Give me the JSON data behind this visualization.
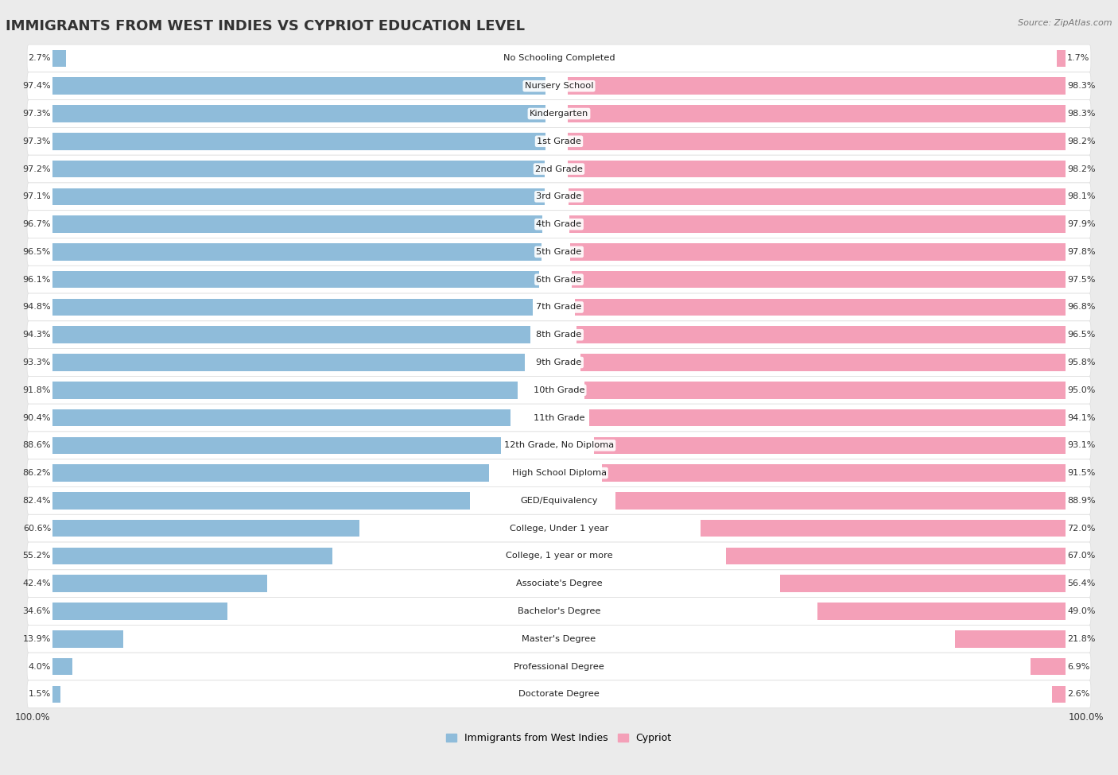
{
  "title": "IMMIGRANTS FROM WEST INDIES VS CYPRIOT EDUCATION LEVEL",
  "source": "Source: ZipAtlas.com",
  "categories": [
    "No Schooling Completed",
    "Nursery School",
    "Kindergarten",
    "1st Grade",
    "2nd Grade",
    "3rd Grade",
    "4th Grade",
    "5th Grade",
    "6th Grade",
    "7th Grade",
    "8th Grade",
    "9th Grade",
    "10th Grade",
    "11th Grade",
    "12th Grade, No Diploma",
    "High School Diploma",
    "GED/Equivalency",
    "College, Under 1 year",
    "College, 1 year or more",
    "Associate's Degree",
    "Bachelor's Degree",
    "Master's Degree",
    "Professional Degree",
    "Doctorate Degree"
  ],
  "west_indies": [
    2.7,
    97.4,
    97.3,
    97.3,
    97.2,
    97.1,
    96.7,
    96.5,
    96.1,
    94.8,
    94.3,
    93.3,
    91.8,
    90.4,
    88.6,
    86.2,
    82.4,
    60.6,
    55.2,
    42.4,
    34.6,
    13.9,
    4.0,
    1.5
  ],
  "cypriot": [
    1.7,
    98.3,
    98.3,
    98.2,
    98.2,
    98.1,
    97.9,
    97.8,
    97.5,
    96.8,
    96.5,
    95.8,
    95.0,
    94.1,
    93.1,
    91.5,
    88.9,
    72.0,
    67.0,
    56.4,
    49.0,
    21.8,
    6.9,
    2.6
  ],
  "west_indies_color": "#8fbcda",
  "cypriot_color": "#f4a0b8",
  "bg_color": "#ebebeb",
  "row_bg_color": "#f7f7f7",
  "row_alt_color": "#f0f0f0",
  "title_fontsize": 13,
  "label_fontsize": 8.2,
  "value_fontsize": 8.0,
  "bar_height": 0.62,
  "legend_label_wi": "Immigrants from West Indies",
  "legend_label_cy": "Cypriot",
  "xlim": 100
}
